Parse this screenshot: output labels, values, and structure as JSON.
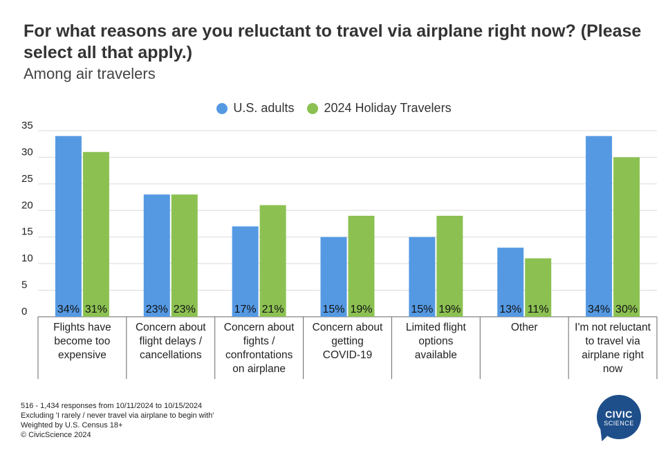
{
  "title": "For what reasons are you reluctant to travel via airplane right now? (Please select all that apply.)",
  "subtitle": "Among air travelers",
  "chart_data": {
    "type": "bar",
    "categories": [
      "Flights have become too expensive",
      "Concern about flight delays / cancellations",
      "Concern about fights / confrontations on airplane",
      "Concern about getting COVID-19",
      "Limited flight options available",
      "Other",
      "I'm not reluctant to travel via airplane right now"
    ],
    "category_lines": [
      [
        "Flights have",
        "become too",
        "expensive"
      ],
      [
        "Concern about",
        "flight delays /",
        "cancellations"
      ],
      [
        "Concern about",
        "fights /",
        "confrontations",
        "on airplane"
      ],
      [
        "Concern about",
        "getting",
        "COVID-19"
      ],
      [
        "Limited flight",
        "options",
        "available"
      ],
      [
        "Other"
      ],
      [
        "I'm not reluctant",
        "to travel via",
        "airplane right",
        "now"
      ]
    ],
    "series": [
      {
        "name": "U.S. adults",
        "color": "#5599e3",
        "values": [
          34,
          23,
          17,
          15,
          15,
          13,
          34
        ],
        "labels": [
          "34%",
          "23%",
          "17%",
          "15%",
          "15%",
          "13%",
          "34%"
        ]
      },
      {
        "name": "2024 Holiday Travelers",
        "color": "#8cc152",
        "values": [
          31,
          23,
          21,
          19,
          19,
          11,
          30
        ],
        "labels": [
          "31%",
          "23%",
          "21%",
          "19%",
          "19%",
          "11%",
          "30%"
        ]
      }
    ],
    "yticks": [
      "0",
      "5",
      "10",
      "15",
      "20",
      "25",
      "30",
      "35"
    ],
    "ylim": [
      0,
      35
    ],
    "grid": true,
    "legend_position": "top"
  },
  "footnotes": [
    "516 - 1,434 responses from 10/11/2024 to 10/15/2024",
    "Excluding 'I rarely / never travel via airplane to begin with'",
    "Weighted by U.S. Census 18+",
    "© CivicScience 2024"
  ],
  "logo": {
    "line1": "CIVIC",
    "line2": "SCIENCE"
  }
}
